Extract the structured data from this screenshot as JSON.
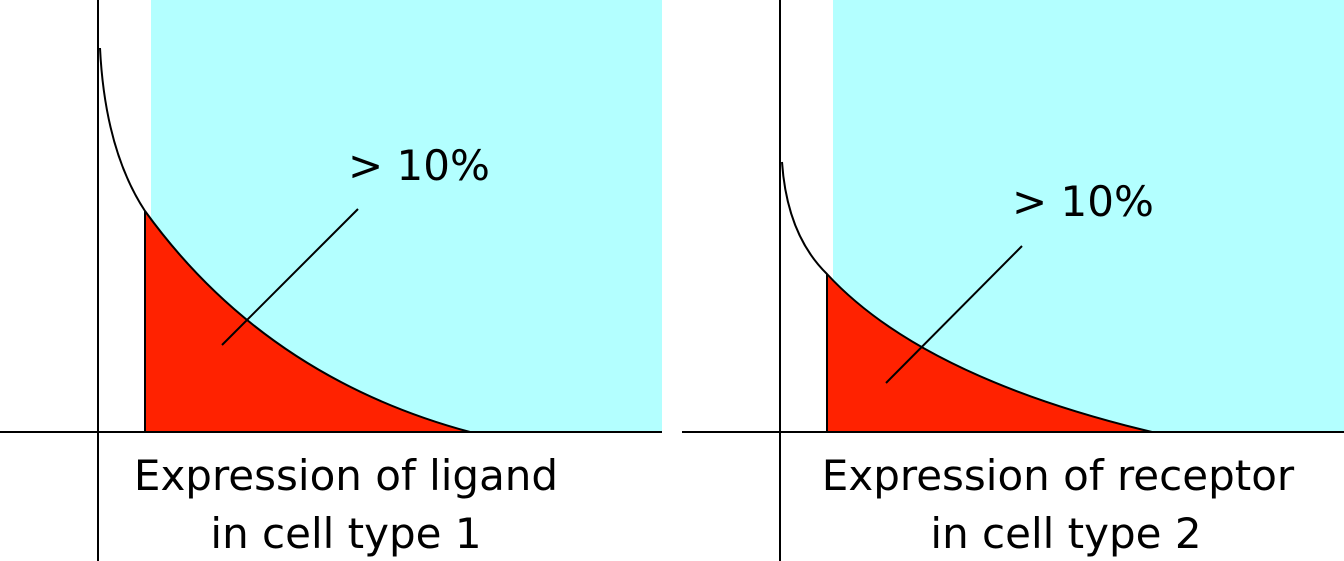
{
  "panels": [
    {
      "threshold_label": "> 10%",
      "axis_label_line1": "Expression of ligand",
      "axis_label_line2": "in cell type 1"
    },
    {
      "threshold_label": "> 10%",
      "axis_label_line1": "Expression of receptor",
      "axis_label_line2": "in cell type 2"
    }
  ],
  "colors": {
    "highlight_region": "#b3ffff",
    "tail_fill": "#ff2200",
    "stroke": "#000000",
    "background": "#ffffff"
  }
}
